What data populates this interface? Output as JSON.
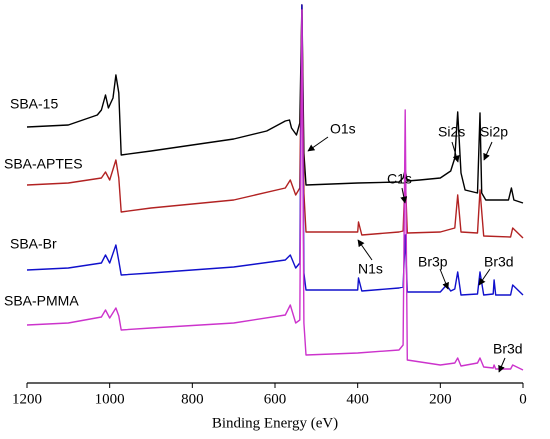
{
  "chart_data": {
    "type": "line",
    "xlabel": "Binding Energy (eV)",
    "xlim": [
      1200,
      0
    ],
    "xticks": [
      1200,
      1000,
      800,
      600,
      400,
      200,
      0
    ],
    "ylim": [
      0,
      378
    ],
    "series": [
      {
        "name": "SBA-15",
        "color": "#000000",
        "x": [
          1200,
          1100,
          1030,
          1020,
          1010,
          1003,
          992,
          985,
          978,
          972,
          900,
          800,
          700,
          620,
          575,
          565,
          560,
          548,
          540,
          535,
          530,
          525,
          400,
          300,
          290,
          285,
          280,
          250,
          200,
          175,
          165,
          158,
          150,
          140,
          110,
          104,
          100,
          90,
          35,
          28,
          22,
          0
        ],
        "values": [
          256,
          258,
          268,
          273,
          288,
          275,
          285,
          308,
          290,
          228,
          232,
          238,
          244,
          252,
          262,
          263,
          255,
          248,
          260,
          378,
          230,
          198,
          200,
          201,
          205,
          213,
          202,
          203,
          205,
          212,
          225,
          271,
          210,
          193,
          190,
          270,
          190,
          183,
          183,
          195,
          183,
          180
        ]
      },
      {
        "name": "SBA-APTES",
        "color": "#b22222",
        "x": [
          1200,
          1100,
          1020,
          1010,
          1000,
          985,
          978,
          972,
          900,
          700,
          575,
          563,
          550,
          540,
          535,
          530,
          525,
          400,
          398,
          390,
          300,
          290,
          285,
          280,
          200,
          165,
          158,
          150,
          110,
          104,
          95,
          30,
          25,
          0
        ],
        "values": [
          198,
          200,
          205,
          211,
          203,
          223,
          205,
          171,
          175,
          183,
          195,
          203,
          188,
          195,
          378,
          190,
          151,
          151,
          161,
          148,
          151,
          152,
          208,
          150,
          151,
          155,
          188,
          151,
          150,
          193,
          147,
          146,
          155,
          145
        ]
      },
      {
        "name": "SBA-Br",
        "color": "#1010cc",
        "x": [
          1200,
          1100,
          1020,
          1010,
          1000,
          985,
          978,
          972,
          900,
          700,
          575,
          563,
          550,
          540,
          535,
          530,
          525,
          400,
          398,
          390,
          300,
          290,
          285,
          280,
          200,
          185,
          175,
          165,
          158,
          150,
          110,
          104,
          95,
          72,
          70,
          66,
          30,
          25,
          0
        ],
        "values": [
          113,
          115,
          120,
          128,
          120,
          138,
          122,
          108,
          110,
          116,
          123,
          128,
          115,
          120,
          378,
          110,
          93,
          93,
          105,
          92,
          95,
          96,
          148,
          91,
          91,
          98,
          92,
          94,
          111,
          88,
          89,
          111,
          88,
          89,
          103,
          88,
          88,
          98,
          88
        ]
      },
      {
        "name": "SBA-PMMA",
        "color": "#cc33cc",
        "x": [
          1200,
          1100,
          1020,
          1010,
          1000,
          985,
          978,
          972,
          900,
          700,
          575,
          563,
          550,
          540,
          535,
          530,
          525,
          400,
          300,
          290,
          285,
          280,
          200,
          165,
          158,
          150,
          110,
          104,
          95,
          72,
          70,
          66,
          30,
          25,
          0
        ],
        "values": [
          58,
          60,
          66,
          73,
          65,
          75,
          67,
          53,
          55,
          60,
          68,
          78,
          60,
          63,
          373,
          60,
          28,
          30,
          33,
          38,
          273,
          23,
          18,
          20,
          25,
          17,
          20,
          25,
          16,
          15,
          18,
          14,
          14,
          18,
          13
        ]
      }
    ],
    "annotations": [
      "O1s",
      "C1s",
      "Si2s",
      "Si2p",
      "N1s",
      "Br3p",
      "Br3d",
      "Br3d"
    ]
  }
}
